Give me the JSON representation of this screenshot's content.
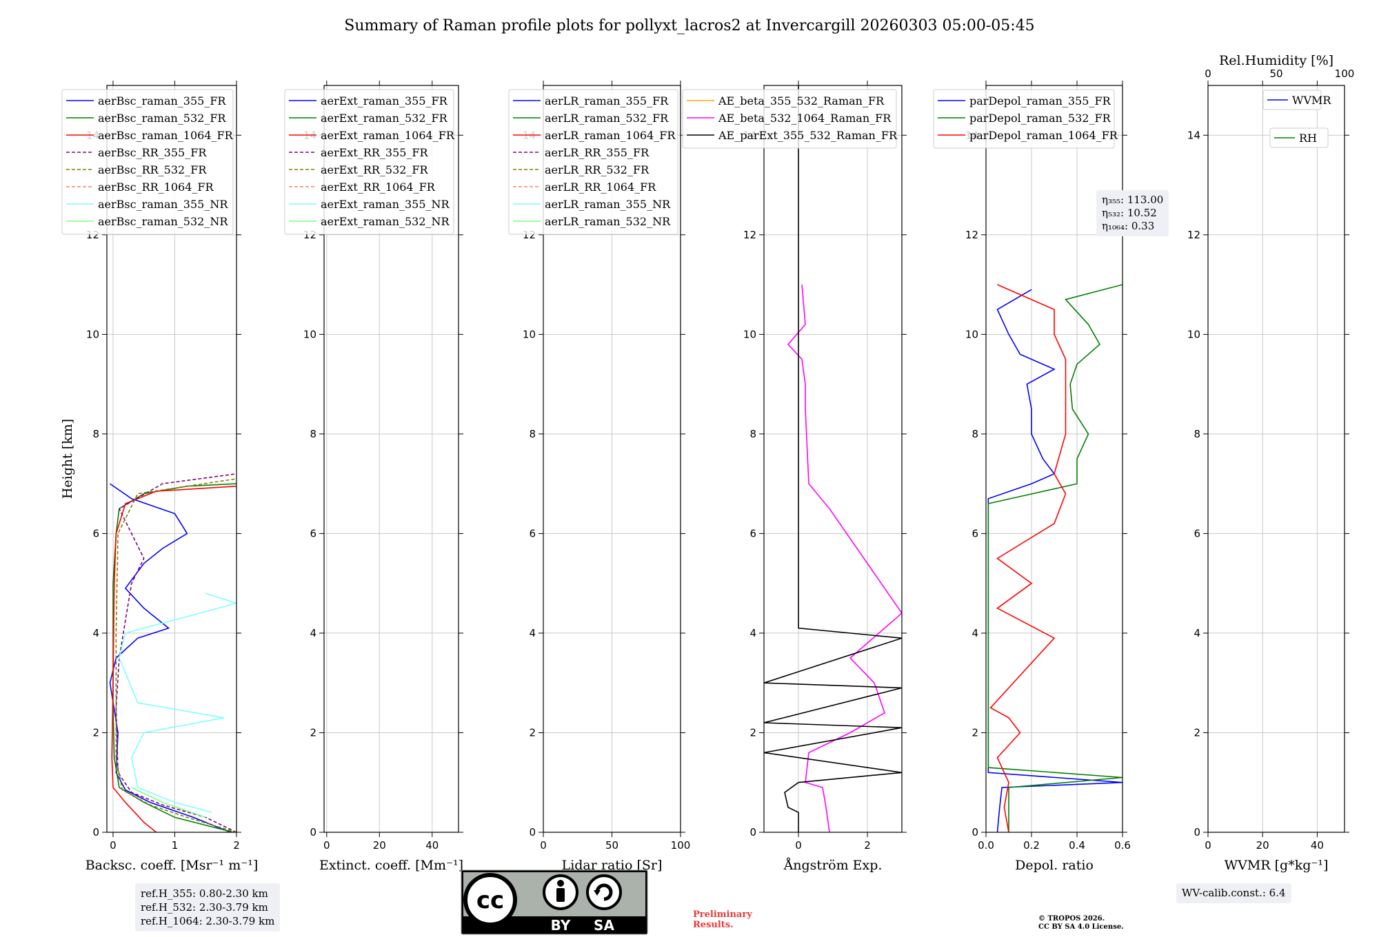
{
  "title": "Summary of Raman profile plots for pollyxt_lacros2 at Invercargill 20260303 05:00-05:45",
  "colors": {
    "blue": "#0000ff",
    "green": "#008000",
    "red": "#ff0000",
    "purple": "#800080",
    "olive": "#808000",
    "salmon": "#fa8072",
    "cyan": "#7fffff",
    "lightgreen": "#7fff7f",
    "orange": "#ffa500",
    "magenta": "#ff00ff",
    "black": "#000000"
  },
  "chart_data": [
    {
      "type": "line",
      "panel": "backscatter",
      "xlabel": "Backsc. coeff. [Msr⁻¹ m⁻¹]",
      "ylabel": "Height [km]",
      "xlim": [
        -0.1,
        2
      ],
      "ylim": [
        0,
        15
      ],
      "xticks": [
        0,
        1,
        2
      ],
      "yticks": [
        0,
        2,
        4,
        6,
        8,
        10,
        12,
        14
      ],
      "legend": [
        "aerBsc_raman_355_FR",
        "aerBsc_raman_532_FR",
        "aerBsc_raman_1064_FR",
        "aerBsc_RR_355_FR",
        "aerBsc_RR_532_FR",
        "aerBsc_RR_1064_FR",
        "aerBsc_raman_355_NR",
        "aerBsc_raman_532_NR"
      ],
      "series": [
        {
          "name": "aerBsc_raman_355_FR",
          "color": "blue",
          "points": [
            [
              1.9,
              0
            ],
            [
              1.3,
              0.3
            ],
            [
              0.6,
              0.6
            ],
            [
              0.2,
              0.85
            ],
            [
              0.05,
              1.2
            ],
            [
              0.08,
              2
            ],
            [
              -0.05,
              3
            ],
            [
              0.05,
              3.5
            ],
            [
              0.4,
              3.9
            ],
            [
              0.9,
              4.1
            ],
            [
              0.5,
              4.5
            ],
            [
              0.2,
              4.9
            ],
            [
              0.5,
              5.4
            ],
            [
              0.8,
              5.7
            ],
            [
              1.2,
              6.0
            ],
            [
              1.0,
              6.4
            ],
            [
              0.3,
              6.7
            ],
            [
              -0.05,
              7.0
            ]
          ]
        },
        {
          "name": "aerBsc_raman_532_FR",
          "color": "green",
          "points": [
            [
              1.95,
              0
            ],
            [
              1.0,
              0.3
            ],
            [
              0.5,
              0.6
            ],
            [
              0.1,
              0.9
            ],
            [
              0.02,
              1.5
            ],
            [
              0.0,
              2.5
            ],
            [
              0.0,
              4
            ],
            [
              0.0,
              5
            ],
            [
              0.05,
              6
            ],
            [
              0.1,
              6.5
            ],
            [
              0.5,
              6.8
            ],
            [
              1.2,
              6.95
            ],
            [
              2,
              7.0
            ]
          ]
        },
        {
          "name": "aerBsc_raman_1064_FR",
          "color": "red",
          "points": [
            [
              0.7,
              0
            ],
            [
              0.5,
              0.2
            ],
            [
              0.2,
              0.6
            ],
            [
              0.0,
              0.9
            ],
            [
              -0.02,
              1.5
            ],
            [
              0.0,
              3
            ],
            [
              0.02,
              5
            ],
            [
              0.05,
              6
            ],
            [
              0.2,
              6.6
            ],
            [
              0.7,
              6.85
            ],
            [
              2,
              6.95
            ]
          ]
        },
        {
          "name": "aerBsc_RR_355_FR",
          "color": "purple",
          "dashed": true,
          "points": [
            [
              2,
              0
            ],
            [
              1.5,
              0.3
            ],
            [
              0.8,
              0.55
            ],
            [
              0.3,
              0.8
            ],
            [
              0.08,
              1.2
            ],
            [
              0.05,
              2.5
            ],
            [
              0.1,
              3.5
            ],
            [
              0.3,
              5.0
            ],
            [
              0.5,
              5.5
            ],
            [
              0.3,
              6
            ],
            [
              0.1,
              6.5
            ],
            [
              0.8,
              7.0
            ],
            [
              2,
              7.2
            ]
          ]
        },
        {
          "name": "aerBsc_RR_532_FR",
          "color": "olive",
          "dashed": true,
          "points": [
            [
              2,
              0
            ],
            [
              1.2,
              0.3
            ],
            [
              0.6,
              0.55
            ],
            [
              0.15,
              0.85
            ],
            [
              0.05,
              1.5
            ],
            [
              0.05,
              4
            ],
            [
              0.08,
              6
            ],
            [
              0.4,
              6.8
            ],
            [
              2,
              7.1
            ]
          ]
        },
        {
          "name": "aerBsc_raman_355_NR",
          "color": "cyan",
          "points": [
            [
              1.6,
              0.4
            ],
            [
              1.0,
              0.6
            ],
            [
              0.4,
              0.9
            ],
            [
              0.3,
              1.5
            ],
            [
              0.5,
              2.0
            ],
            [
              1.8,
              2.3
            ],
            [
              0.4,
              2.6
            ],
            [
              0.1,
              3.5
            ],
            [
              0.2,
              4.0
            ],
            [
              2,
              4.6
            ],
            [
              1.5,
              4.8
            ]
          ]
        },
        {
          "name": "aerBsc_raman_532_NR",
          "color": "lightgreen",
          "points": [
            [
              1.5,
              0.3
            ],
            [
              0.8,
              0.6
            ],
            [
              0.3,
              0.9
            ]
          ]
        }
      ]
    },
    {
      "type": "line",
      "panel": "extinction",
      "xlabel": "Extinct. coeff. [Mm⁻¹]",
      "xlim": [
        -1,
        50
      ],
      "ylim": [
        0,
        15
      ],
      "xticks": [
        0,
        20,
        40
      ],
      "yticks": [
        0,
        2,
        4,
        6,
        8,
        10,
        12,
        14
      ],
      "legend": [
        "aerExt_raman_355_FR",
        "aerExt_raman_532_FR",
        "aerExt_raman_1064_FR",
        "aerExt_RR_355_FR",
        "aerExt_RR_532_FR",
        "aerExt_RR_1064_FR",
        "aerExt_raman_355_NR",
        "aerExt_raman_532_NR"
      ]
    },
    {
      "type": "line",
      "panel": "lidar_ratio",
      "xlabel": "Lidar ratio [Sr]",
      "xlim": [
        0,
        100
      ],
      "ylim": [
        0,
        15
      ],
      "xticks": [
        0,
        50,
        100
      ],
      "yticks": [
        0,
        2,
        4,
        6,
        8,
        10,
        12,
        14
      ],
      "legend": [
        "aerLR_raman_355_FR",
        "aerLR_raman_532_FR",
        "aerLR_raman_1064_FR",
        "aerLR_RR_355_FR",
        "aerLR_RR_532_FR",
        "aerLR_RR_1064_FR",
        "aerLR_raman_355_NR",
        "aerLR_raman_532_NR"
      ]
    },
    {
      "type": "line",
      "panel": "angstrom",
      "xlabel": "Ångström Exp.",
      "xlim": [
        -1,
        3
      ],
      "ylim": [
        0,
        15
      ],
      "xticks": [
        0,
        2
      ],
      "yticks": [
        0,
        2,
        4,
        6,
        8,
        10,
        12,
        14
      ],
      "legend": [
        "AE_beta_355_532_Raman_FR",
        "AE_beta_532_1064_Raman_FR",
        "AE_parExt_355_532_Raman_FR"
      ],
      "series": [
        {
          "name": "AE_beta_532_1064_Raman_FR",
          "color": "magenta",
          "points": [
            [
              0.9,
              0
            ],
            [
              0.8,
              0.5
            ],
            [
              0.7,
              0.9
            ],
            [
              0.2,
              1.0
            ],
            [
              0.3,
              1.6
            ],
            [
              1.5,
              2.0
            ],
            [
              2.5,
              2.4
            ],
            [
              2.2,
              3.0
            ],
            [
              1.5,
              3.5
            ],
            [
              3,
              4.4
            ],
            [
              0.9,
              6.5
            ],
            [
              0.3,
              7.0
            ],
            [
              0.2,
              8.5
            ],
            [
              0.2,
              9.0
            ],
            [
              0.1,
              9.5
            ],
            [
              -0.3,
              9.8
            ],
            [
              0.2,
              10.2
            ],
            [
              0.1,
              11.0
            ]
          ]
        },
        {
          "name": "AE_parExt_355_532_Raman_FR",
          "color": "black",
          "points": [
            [
              0,
              0
            ],
            [
              0,
              0.4
            ],
            [
              -0.3,
              0.5
            ],
            [
              -0.4,
              0.8
            ],
            [
              0,
              1.0
            ],
            [
              3,
              1.2
            ],
            [
              -1,
              1.6
            ],
            [
              3,
              2.1
            ],
            [
              -1,
              2.2
            ],
            [
              3,
              2.9
            ],
            [
              -1,
              3.0
            ],
            [
              3,
              3.9
            ],
            [
              0,
              4.1
            ],
            [
              0,
              15
            ]
          ]
        }
      ]
    },
    {
      "type": "line",
      "panel": "depolarization",
      "xlabel": "Depol. ratio",
      "xlim": [
        0,
        0.6
      ],
      "ylim": [
        0,
        15
      ],
      "xticks": [
        0.0,
        0.2,
        0.4,
        0.6
      ],
      "yticks": [
        0,
        2,
        4,
        6,
        8,
        10,
        12,
        14
      ],
      "legend": [
        "parDepol_raman_355_FR",
        "parDepol_raman_532_FR",
        "parDepol_raman_1064_FR"
      ],
      "series": [
        {
          "name": "parDepol_raman_355_FR",
          "color": "blue",
          "points": [
            [
              0.05,
              0
            ],
            [
              0.06,
              0.5
            ],
            [
              0.07,
              0.9
            ],
            [
              0.6,
              1.0
            ],
            [
              0.01,
              1.2
            ],
            [
              0.01,
              5
            ],
            [
              0.01,
              6.7
            ],
            [
              0.2,
              7.0
            ],
            [
              0.3,
              7.2
            ],
            [
              0.25,
              7.5
            ],
            [
              0.2,
              8.0
            ],
            [
              0.2,
              8.5
            ],
            [
              0.18,
              9.0
            ],
            [
              0.3,
              9.3
            ],
            [
              0.15,
              9.6
            ],
            [
              0.1,
              10.0
            ],
            [
              0.05,
              10.5
            ],
            [
              0.2,
              10.9
            ]
          ]
        },
        {
          "name": "parDepol_raman_532_FR",
          "color": "green",
          "points": [
            [
              0.1,
              0
            ],
            [
              0.1,
              0.9
            ],
            [
              0.6,
              1.1
            ],
            [
              0.01,
              1.3
            ],
            [
              0.01,
              2
            ],
            [
              0.01,
              4
            ],
            [
              0.01,
              6
            ],
            [
              0.01,
              6.6
            ],
            [
              0.4,
              7.0
            ],
            [
              0.4,
              7.5
            ],
            [
              0.45,
              8.0
            ],
            [
              0.38,
              8.5
            ],
            [
              0.37,
              9.0
            ],
            [
              0.4,
              9.4
            ],
            [
              0.5,
              9.8
            ],
            [
              0.45,
              10.2
            ],
            [
              0.35,
              10.7
            ],
            [
              0.6,
              11.0
            ]
          ]
        },
        {
          "name": "parDepol_raman_1064_FR",
          "color": "red",
          "points": [
            [
              0.1,
              0
            ],
            [
              0.08,
              0.5
            ],
            [
              0.1,
              1.0
            ],
            [
              0.05,
              1.5
            ],
            [
              0.15,
              2.0
            ],
            [
              0.1,
              2.3
            ],
            [
              0.02,
              2.5
            ],
            [
              0.3,
              3.9
            ],
            [
              0.05,
              4.5
            ],
            [
              0.2,
              5.0
            ],
            [
              0.05,
              5.5
            ],
            [
              0.3,
              6.2
            ],
            [
              0.35,
              6.8
            ],
            [
              0.3,
              7.2
            ],
            [
              0.35,
              8.0
            ],
            [
              0.35,
              9.0
            ],
            [
              0.35,
              9.5
            ],
            [
              0.3,
              10.0
            ],
            [
              0.3,
              10.5
            ],
            [
              0.05,
              11.0
            ]
          ]
        }
      ]
    },
    {
      "type": "line",
      "panel": "wvmr_rh",
      "xlabel": "WVMR [g*kg⁻¹]",
      "top_xlabel": "Rel.Humidity [%]",
      "xlim": [
        0,
        50
      ],
      "ylim": [
        0,
        15
      ],
      "xticks": [
        0,
        20,
        40
      ],
      "top_xticks": [
        0,
        50,
        100
      ],
      "yticks": [
        0,
        2,
        4,
        6,
        8,
        10,
        12,
        14
      ],
      "legend": [
        "WVMR",
        "RH"
      ]
    }
  ],
  "annotations": {
    "eta": [
      "η₃₅₅: 113.00",
      "η₅₃₂: 10.52",
      "η₁₀₆₄: 0.33"
    ],
    "ref_heights": [
      "ref.H_355: 0.80-2.30 km",
      "ref.H_532: 2.30-3.79 km",
      "ref.H_1064: 2.30-3.79 km"
    ],
    "wv_calib": "WV-calib.const.: 6.4",
    "license_badge": [
      "BY",
      "SA"
    ],
    "preliminary": [
      "Preliminary",
      "Results."
    ],
    "copyright": [
      "© TROPOS 2026.",
      "CC BY SA 4.0 License."
    ]
  }
}
